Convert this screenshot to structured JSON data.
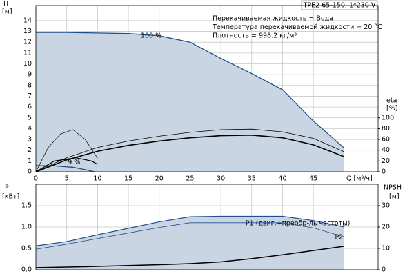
{
  "chart_data": [
    {
      "type": "line",
      "title": "TPE2 65-150, 1*230 V",
      "annotations": [
        "Перекачиваемая жидкость = Вода",
        "Температура перекачиваемой жидкости = 20 °C",
        "Плотность = 998.2 кг/м³"
      ],
      "x_label": "Q [м³/ч]",
      "y_label": "H",
      "y_unit": "[м]",
      "y2_label": "eta",
      "y2_unit": "[%]",
      "xlim": [
        0,
        55.5
      ],
      "xticks": [
        0,
        5,
        10,
        15,
        20,
        25,
        30,
        35,
        40,
        45
      ],
      "ylim": [
        0,
        15.4
      ],
      "yticks": [
        0,
        1,
        2,
        3,
        4,
        5,
        6,
        7,
        8,
        9,
        10,
        11,
        12,
        13,
        14
      ],
      "y2lim": [
        0,
        308
      ],
      "y2ticks": [
        0,
        20,
        40,
        60,
        80,
        100
      ],
      "grid": true,
      "series": [
        {
          "name": "100 %",
          "color": "#1f4e8c",
          "x": [
            0,
            5,
            10,
            15,
            20,
            25,
            30,
            35,
            40,
            45,
            50
          ],
          "values": [
            12.9,
            12.9,
            12.85,
            12.8,
            12.6,
            12.0,
            10.5,
            9.1,
            7.6,
            4.7,
            2.2
          ]
        },
        {
          "name": "19 %",
          "color": "#1f4e8c",
          "x": [
            0,
            3,
            6,
            8,
            9.5
          ],
          "values": [
            0.58,
            0.55,
            0.42,
            0.2,
            0
          ]
        },
        {
          "color": "#000000",
          "axis": "y2",
          "x": [
            0,
            5,
            10,
            15,
            20,
            25,
            30,
            35,
            40,
            45,
            50
          ],
          "values": [
            0,
            22,
            38,
            49,
            57,
            63,
            67,
            68,
            63,
            50,
            28
          ]
        },
        {
          "color": "#000000",
          "axis": "y2",
          "x": [
            0,
            5,
            10,
            15,
            20,
            25,
            30,
            35,
            40,
            45,
            50
          ],
          "values": [
            0,
            26,
            45,
            57,
            66,
            73,
            78,
            79,
            74,
            62,
            37
          ]
        },
        {
          "color": "#000000",
          "axis": "y2",
          "x": [
            0,
            2,
            4,
            6,
            8,
            10
          ],
          "values": [
            0,
            45,
            70,
            78,
            60,
            25
          ]
        },
        {
          "color": "#000000",
          "axis": "y2",
          "x": [
            0,
            3,
            6.5,
            9,
            10
          ],
          "values": [
            0,
            20,
            26,
            20,
            14
          ]
        }
      ]
    },
    {
      "type": "line",
      "y_label": "P",
      "y_unit": "[кВт]",
      "y2_label": "NPSH",
      "y2_unit": "[м]",
      "xlim": [
        0,
        55.5
      ],
      "ylim": [
        0,
        2.0
      ],
      "yticks": [
        {
          "value": 0,
          "label": "0.0"
        },
        0.5,
        {
          "value": 1,
          "label": "1.0"
        },
        1.5
      ],
      "y2lim": [
        0,
        40
      ],
      "y2ticks": [
        0,
        10,
        20,
        30
      ],
      "grid": true,
      "series": [
        {
          "name": "P1 (двиг.+преобр-ль частоты)",
          "color": "#1f4e8c",
          "x": [
            0,
            5,
            10,
            15,
            20,
            25,
            30,
            35,
            40,
            45,
            50
          ],
          "values": [
            0.56,
            0.66,
            0.82,
            0.97,
            1.12,
            1.24,
            1.25,
            1.25,
            1.25,
            1.15,
            1.0
          ]
        },
        {
          "name": "P2",
          "color": "#1f4e8c",
          "x": [
            0,
            5,
            10,
            15,
            20,
            25,
            30,
            35,
            40,
            45,
            50
          ],
          "values": [
            0.48,
            0.6,
            0.73,
            0.86,
            0.99,
            1.1,
            1.1,
            1.1,
            1.1,
            0.98,
            0.77
          ]
        },
        {
          "color": "#000000",
          "axis": "y2",
          "x": [
            0,
            5,
            10,
            15,
            20,
            25,
            30,
            35,
            40,
            45,
            50
          ],
          "values": [
            1.0,
            1.3,
            1.6,
            2.0,
            2.4,
            2.9,
            3.7,
            5.2,
            7.0,
            9.0,
            11.0
          ]
        }
      ]
    }
  ]
}
